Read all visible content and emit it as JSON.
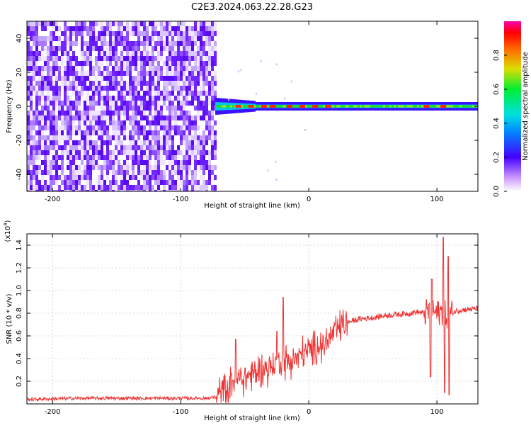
{
  "figure_title": "C2E3.2024.063.22.28.G23",
  "colors": {
    "signal": "#ee3333",
    "noise_purple": "#6a1aff"
  },
  "chart_data": [
    {
      "type": "heatmap",
      "title": "C2E3.2024.063.22.28.G23",
      "xlabel": "Height of straight line (km)",
      "ylabel": "Frequency (Hz)",
      "xlim": [
        -220,
        132
      ],
      "ylim": [
        -50,
        50
      ],
      "xticks": [
        -200,
        -100,
        0,
        100
      ],
      "yticks": [
        -40,
        -20,
        0,
        20,
        40
      ],
      "colorbar": {
        "label": "Normalized spectral amplitude",
        "ticks": [
          "0.0",
          "0.2",
          "0.4",
          "0.6",
          "0.8"
        ],
        "range": [
          0,
          1
        ]
      },
      "regions": [
        {
          "x_from": -220,
          "x_to": -73,
          "description": "broadband noise",
          "typical_amplitude": 0.12
        },
        {
          "x_from": -73,
          "x_to": 132,
          "description": "signal band near 0 Hz",
          "typical_amplitude": 0.75
        }
      ]
    },
    {
      "type": "line",
      "xlabel": "Height of straight line (km)",
      "ylabel": "SNR (10 * v/v)",
      "y_scale_label": "(x10",
      "y_scale_exp": "4",
      "y_scale_close": ")",
      "xlim": [
        -220,
        132
      ],
      "ylim": [
        0,
        1.5
      ],
      "xticks": [
        -200,
        -100,
        0,
        100
      ],
      "yticks": [
        0.2,
        0.4,
        0.6,
        0.8,
        1.0,
        1.2,
        1.4
      ],
      "series": [
        {
          "x": [
            -220,
            -200,
            -180,
            -160,
            -140,
            -120,
            -100,
            -90,
            -80,
            -72,
            -66,
            -60,
            -55,
            -50,
            -45,
            -40,
            -35,
            -30,
            -25,
            -20,
            -15,
            -10,
            -5,
            0,
            5,
            10,
            15,
            20,
            25,
            30,
            40,
            50,
            60,
            70,
            80,
            85,
            90,
            95,
            100,
            104,
            106,
            108,
            110,
            115,
            120,
            132
          ],
          "y": [
            0.04,
            0.045,
            0.05,
            0.05,
            0.05,
            0.05,
            0.05,
            0.05,
            0.05,
            0.06,
            0.12,
            0.2,
            0.22,
            0.23,
            0.26,
            0.28,
            0.3,
            0.32,
            0.36,
            0.38,
            0.37,
            0.4,
            0.45,
            0.46,
            0.5,
            0.52,
            0.56,
            0.63,
            0.68,
            0.72,
            0.75,
            0.76,
            0.78,
            0.79,
            0.8,
            0.81,
            0.8,
            0.82,
            0.8,
            0.81,
            0.8,
            0.78,
            0.79,
            0.82,
            0.83,
            0.84
          ]
        }
      ],
      "spikes": [
        {
          "x": -57,
          "y": 0.57
        },
        {
          "x": -20,
          "y": 0.94
        },
        {
          "x": -25,
          "y": 0.64
        },
        {
          "x": 95,
          "y": 0.24
        },
        {
          "x": 96,
          "y": 1.1
        },
        {
          "x": 105,
          "y": 1.47
        },
        {
          "x": 106,
          "y": 0.1
        },
        {
          "x": 109,
          "y": 1.3
        },
        {
          "x": 109.5,
          "y": 0.08
        }
      ]
    }
  ]
}
